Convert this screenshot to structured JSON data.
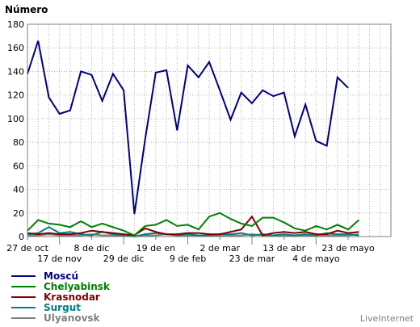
{
  "chart_data": {
    "type": "line",
    "ylabel": "Número",
    "ylim": [
      0,
      180
    ],
    "yticks": [
      0,
      20,
      40,
      60,
      80,
      100,
      120,
      140,
      160,
      180
    ],
    "grid": true,
    "x_count": 35,
    "x_ticks": [
      {
        "label": "27 de oct",
        "index": 0,
        "row": 1
      },
      {
        "label": "17 de nov",
        "index": 3,
        "row": 2
      },
      {
        "label": "8 de dic",
        "index": 6,
        "row": 1
      },
      {
        "label": "29 de dic",
        "index": 9,
        "row": 2
      },
      {
        "label": "19 de en",
        "index": 12,
        "row": 1
      },
      {
        "label": "9 de feb",
        "index": 15,
        "row": 2
      },
      {
        "label": "2 de mar",
        "index": 18,
        "row": 1
      },
      {
        "label": "23 de mar",
        "index": 21,
        "row": 2
      },
      {
        "label": "13 de abr",
        "index": 24,
        "row": 1
      },
      {
        "label": "4 de mayo",
        "index": 27,
        "row": 2
      },
      {
        "label": "23 de mayo",
        "index": 30,
        "row": 1
      }
    ],
    "series": [
      {
        "name": "Moscú",
        "color": "#000080",
        "values": [
          138,
          166,
          118,
          104,
          107,
          140,
          137,
          115,
          138,
          124,
          19,
          82,
          139,
          141,
          90,
          145,
          135,
          148,
          124,
          99,
          122,
          113,
          124,
          119,
          122,
          85,
          112,
          81,
          77,
          135,
          126
        ]
      },
      {
        "name": "Chelyabinsk",
        "color": "#008000",
        "values": [
          5,
          14,
          11,
          10,
          8,
          13,
          8,
          11,
          8,
          5,
          1,
          9,
          10,
          14,
          9,
          10,
          6,
          17,
          20,
          15,
          11,
          9,
          16,
          16,
          12,
          7,
          5,
          9,
          6,
          10,
          6,
          14
        ]
      },
      {
        "name": "Krasnodar",
        "color": "#800000",
        "values": [
          3,
          2,
          3,
          2,
          2,
          3,
          5,
          4,
          3,
          2,
          1,
          7,
          4,
          2,
          2,
          3,
          3,
          2,
          2,
          4,
          6,
          17,
          1,
          3,
          4,
          3,
          4,
          2,
          2,
          5,
          3,
          4
        ]
      },
      {
        "name": "Surgut",
        "color": "#008080",
        "values": [
          2,
          3,
          8,
          3,
          4,
          2,
          1,
          4,
          2,
          1,
          0,
          2,
          3,
          2,
          1,
          2,
          1,
          1,
          2,
          2,
          3,
          1,
          2,
          1,
          2,
          1,
          2,
          1,
          3,
          2,
          2,
          1
        ]
      },
      {
        "name": "Ulyanovsk",
        "color": "#808080",
        "values": [
          1,
          1,
          2,
          1,
          1,
          1,
          2,
          1,
          1,
          1,
          0,
          1,
          1,
          2,
          1,
          1,
          1,
          1,
          1,
          1,
          1,
          2,
          1,
          1,
          1,
          1,
          1,
          1,
          1,
          1,
          1,
          2
        ]
      }
    ]
  },
  "credit": "LiveInternet"
}
